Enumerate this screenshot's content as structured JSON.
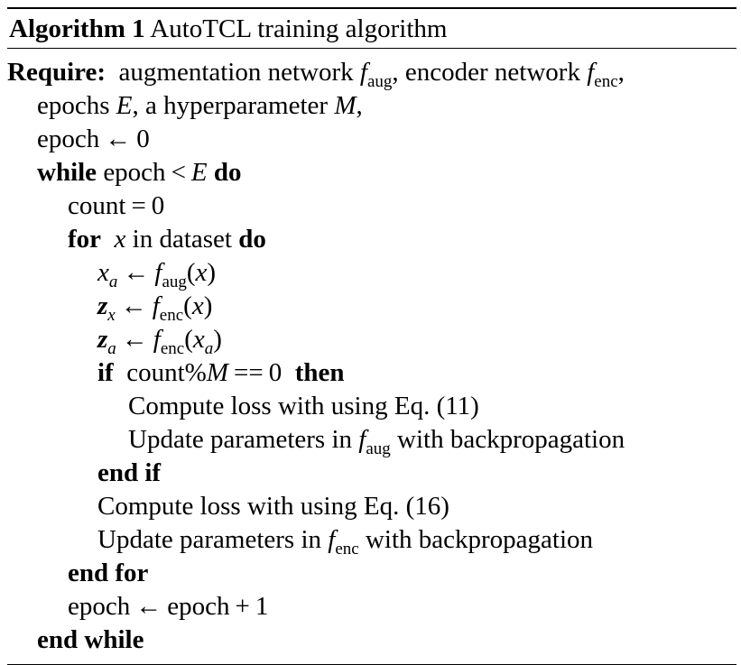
{
  "caption": {
    "label": "Algorithm 1",
    "title": "AutoTCL training algorithm"
  },
  "lines": {
    "require_kw": "Require:",
    "require_1": "augmentation network",
    "f": "f",
    "aug": "aug",
    "enc": "enc",
    "comma": ",",
    "require_2": "encoder network",
    "epochs": "epochs",
    "E": "E",
    "require_3": ", a hyperparameter",
    "M": "M",
    "epoch": "epoch",
    "arrow": "←",
    "zero": "0",
    "while_kw": "while",
    "lt": "<",
    "do_kw": "do",
    "count": "count",
    "eq": "=",
    "for_kw": "for",
    "x": "x",
    "in_dataset": "in dataset",
    "a": "a",
    "z": "z",
    "lparen": "(",
    "rparen": ")",
    "if_kw": "if",
    "mod_text": "count%",
    "eqeq": "==",
    "then_kw": "then",
    "compute_11": "Compute loss with using Eq. (11)",
    "update_pre": "Update parameters in",
    "update_post": "with backpropagation",
    "endif_kw": "end if",
    "compute_16": "Compute loss with using Eq. (16)",
    "endfor_kw": "end for",
    "plus": "+",
    "one": "1",
    "endwhile_kw": "end while"
  }
}
